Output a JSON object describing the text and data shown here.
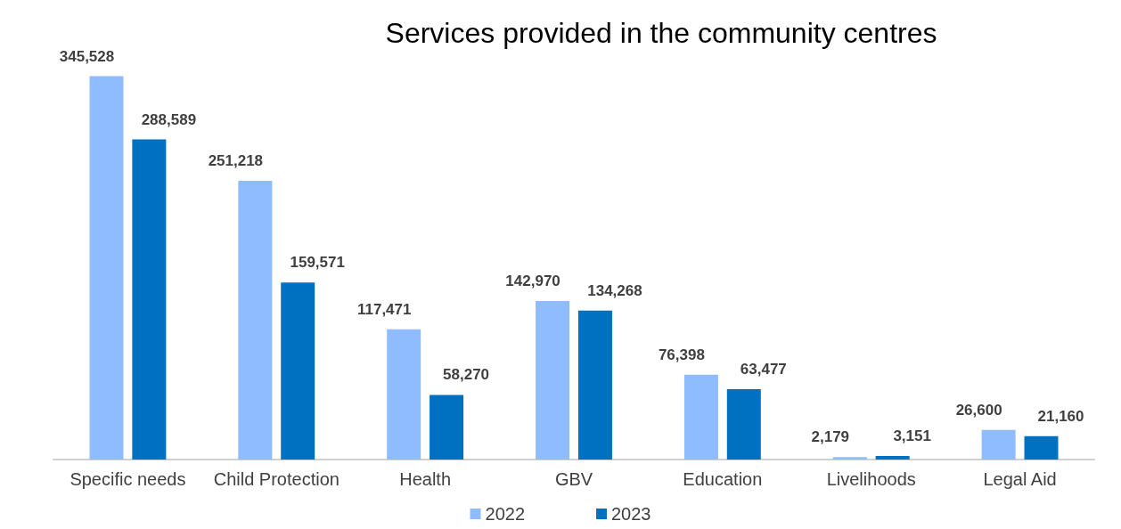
{
  "chart_data": {
    "type": "bar",
    "title": "Services provided in the community centres",
    "categories": [
      "Specific needs",
      "Child Protection",
      "Health",
      "GBV",
      "Education",
      "Livelihoods",
      "Legal Aid"
    ],
    "series": [
      {
        "name": "2022",
        "color": "#8fbcff",
        "values": [
          345528,
          251218,
          117471,
          142970,
          76398,
          2179,
          26600
        ],
        "value_labels": [
          "345,528",
          "251,218",
          "117,471",
          "142,970",
          "76,398",
          "2,179",
          "26,600"
        ]
      },
      {
        "name": "2023",
        "color": "#0070c0",
        "values": [
          288589,
          159571,
          58270,
          134268,
          63477,
          3151,
          21160
        ],
        "value_labels": [
          "288,589",
          "159,571",
          "58,270",
          "134,268",
          "63,477",
          "3,151",
          "21,160"
        ]
      }
    ],
    "legend": "bottom",
    "grid": false
  }
}
